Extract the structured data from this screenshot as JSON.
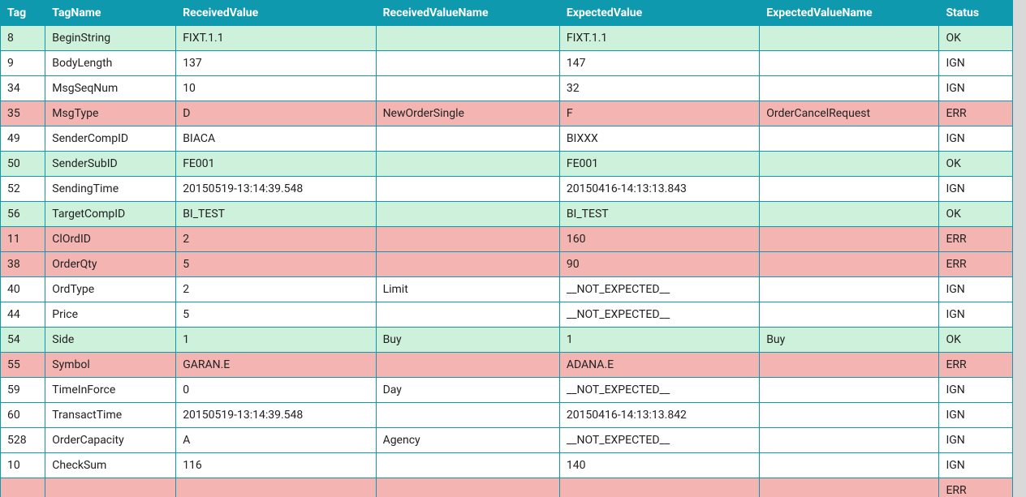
{
  "colors": {
    "header_bg": "#0e99af",
    "header_fg": "#ffffff",
    "border": "#0e99af",
    "row_ok_bg": "#cdf1da",
    "row_err_bg": "#f4b4b2",
    "row_ign_bg": "#ffffff",
    "page_bg": "#d9d9d9",
    "text": "#212121"
  },
  "status_to_class": {
    "OK": "row-ok",
    "ERR": "row-err",
    "IGN": "row-ign"
  },
  "table": {
    "columns": [
      {
        "key": "tag",
        "label": "Tag"
      },
      {
        "key": "tagName",
        "label": "TagName"
      },
      {
        "key": "receivedValue",
        "label": "ReceivedValue"
      },
      {
        "key": "receivedValueName",
        "label": "ReceivedValueName"
      },
      {
        "key": "expectedValue",
        "label": "ExpectedValue"
      },
      {
        "key": "expectedValueName",
        "label": "ExpectedValueName"
      },
      {
        "key": "status",
        "label": "Status"
      }
    ],
    "rows": [
      {
        "tag": "8",
        "tagName": "BeginString",
        "receivedValue": "FIXT.1.1",
        "receivedValueName": "",
        "expectedValue": "FIXT.1.1",
        "expectedValueName": "",
        "status": "OK"
      },
      {
        "tag": "9",
        "tagName": "BodyLength",
        "receivedValue": "137",
        "receivedValueName": "",
        "expectedValue": "147",
        "expectedValueName": "",
        "status": "IGN"
      },
      {
        "tag": "34",
        "tagName": "MsgSeqNum",
        "receivedValue": "10",
        "receivedValueName": "",
        "expectedValue": "32",
        "expectedValueName": "",
        "status": "IGN"
      },
      {
        "tag": "35",
        "tagName": "MsgType",
        "receivedValue": "D",
        "receivedValueName": "NewOrderSingle",
        "expectedValue": "F",
        "expectedValueName": "OrderCancelRequest",
        "status": "ERR"
      },
      {
        "tag": "49",
        "tagName": "SenderCompID",
        "receivedValue": "BIACA",
        "receivedValueName": "",
        "expectedValue": "BIXXX",
        "expectedValueName": "",
        "status": "IGN"
      },
      {
        "tag": "50",
        "tagName": "SenderSubID",
        "receivedValue": "FE001",
        "receivedValueName": "",
        "expectedValue": "FE001",
        "expectedValueName": "",
        "status": "OK"
      },
      {
        "tag": "52",
        "tagName": "SendingTime",
        "receivedValue": "20150519-13:14:39.548",
        "receivedValueName": "",
        "expectedValue": "20150416-14:13:13.843",
        "expectedValueName": "",
        "status": "IGN"
      },
      {
        "tag": "56",
        "tagName": "TargetCompID",
        "receivedValue": "BI_TEST",
        "receivedValueName": "",
        "expectedValue": "BI_TEST",
        "expectedValueName": "",
        "status": "OK"
      },
      {
        "tag": "11",
        "tagName": "ClOrdID",
        "receivedValue": "2",
        "receivedValueName": "",
        "expectedValue": "160",
        "expectedValueName": "",
        "status": "ERR"
      },
      {
        "tag": "38",
        "tagName": "OrderQty",
        "receivedValue": "5",
        "receivedValueName": "",
        "expectedValue": "90",
        "expectedValueName": "",
        "status": "ERR"
      },
      {
        "tag": "40",
        "tagName": "OrdType",
        "receivedValue": "2",
        "receivedValueName": "Limit",
        "expectedValue": "__NOT_EXPECTED__",
        "expectedValueName": "",
        "status": "IGN"
      },
      {
        "tag": "44",
        "tagName": "Price",
        "receivedValue": "5",
        "receivedValueName": "",
        "expectedValue": "__NOT_EXPECTED__",
        "expectedValueName": "",
        "status": "IGN"
      },
      {
        "tag": "54",
        "tagName": "Side",
        "receivedValue": "1",
        "receivedValueName": "Buy",
        "expectedValue": "1",
        "expectedValueName": "Buy",
        "status": "OK"
      },
      {
        "tag": "55",
        "tagName": "Symbol",
        "receivedValue": "GARAN.E",
        "receivedValueName": "",
        "expectedValue": "ADANA.E",
        "expectedValueName": "",
        "status": "ERR"
      },
      {
        "tag": "59",
        "tagName": "TimeInForce",
        "receivedValue": "0",
        "receivedValueName": "Day",
        "expectedValue": "__NOT_EXPECTED__",
        "expectedValueName": "",
        "status": "IGN"
      },
      {
        "tag": "60",
        "tagName": "TransactTime",
        "receivedValue": "20150519-13:14:39.548",
        "receivedValueName": "",
        "expectedValue": "20150416-14:13:13.842",
        "expectedValueName": "",
        "status": "IGN"
      },
      {
        "tag": "528",
        "tagName": "OrderCapacity",
        "receivedValue": "A",
        "receivedValueName": "Agency",
        "expectedValue": "__NOT_EXPECTED__",
        "expectedValueName": "",
        "status": "IGN"
      },
      {
        "tag": "10",
        "tagName": "CheckSum",
        "receivedValue": "116",
        "receivedValueName": "",
        "expectedValue": "140",
        "expectedValueName": "",
        "status": "IGN"
      },
      {
        "tag": "",
        "tagName": "",
        "receivedValue": "",
        "receivedValueName": "",
        "expectedValue": "",
        "expectedValueName": "",
        "status": "ERR"
      }
    ]
  }
}
